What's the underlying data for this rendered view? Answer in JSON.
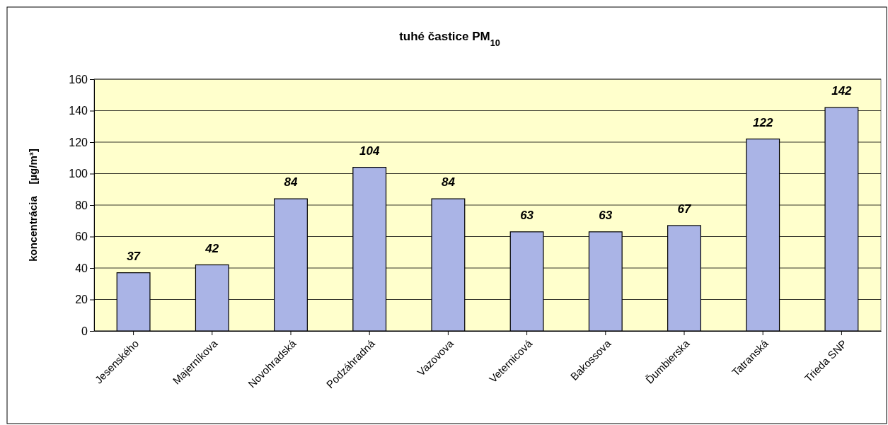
{
  "chart_data": {
    "type": "bar",
    "title": "tuhé častice PM$_{10}$",
    "ylabel": "koncentrácia    [µg/m³]",
    "categories": [
      "Jesenského",
      "Majerníkova",
      "Novohradská",
      "Podzáhradná",
      "Vazovova",
      "Veternicová",
      "Bakossova",
      "Ďumbierska",
      "Tatranská",
      "Trieda SNP"
    ],
    "values": [
      37,
      42,
      84,
      104,
      84,
      63,
      63,
      67,
      122,
      142
    ],
    "color": "#aab4e6",
    "ylim": [
      0,
      160
    ],
    "yticks": [
      0,
      20,
      40,
      60,
      80,
      100,
      120,
      140,
      160
    ],
    "grid": "y",
    "data_labels": true
  }
}
